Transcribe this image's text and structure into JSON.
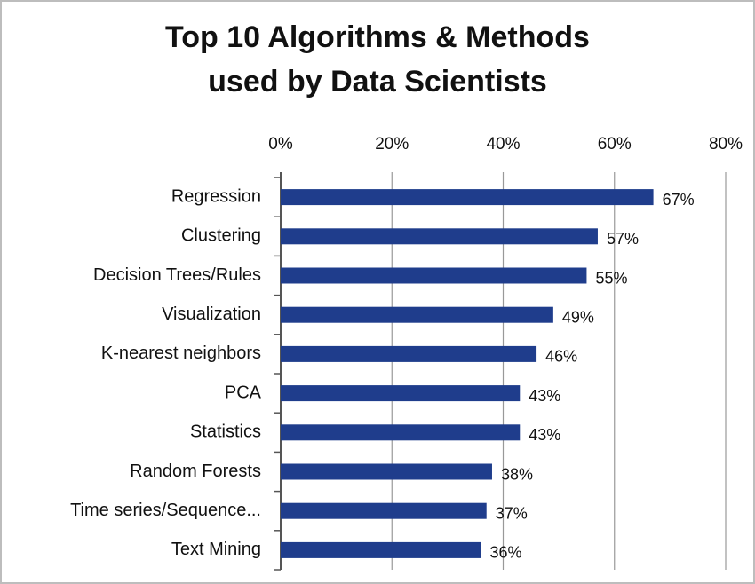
{
  "chart_data": {
    "type": "bar",
    "orientation": "horizontal",
    "title": [
      "Top 10 Algorithms & Methods",
      "used by Data Scientists"
    ],
    "categories": [
      "Regression",
      "Clustering",
      "Decision Trees/Rules",
      "Visualization",
      "K-nearest neighbors",
      "PCA",
      "Statistics",
      "Random Forests",
      "Time series/Sequence...",
      "Text Mining"
    ],
    "values": [
      67,
      57,
      55,
      49,
      46,
      43,
      43,
      38,
      37,
      36
    ],
    "value_labels": [
      "67%",
      "57%",
      "55%",
      "49%",
      "46%",
      "43%",
      "43%",
      "38%",
      "37%",
      "36%"
    ],
    "color": "#1f3d8c",
    "xlim": [
      0,
      80
    ],
    "xticks": [
      {
        "value": 0,
        "label": "0%"
      },
      {
        "value": 20,
        "label": "20%"
      },
      {
        "value": 40,
        "label": "40%"
      },
      {
        "value": 60,
        "label": "60%"
      },
      {
        "value": 80,
        "label": "80%"
      }
    ],
    "grid": true
  }
}
